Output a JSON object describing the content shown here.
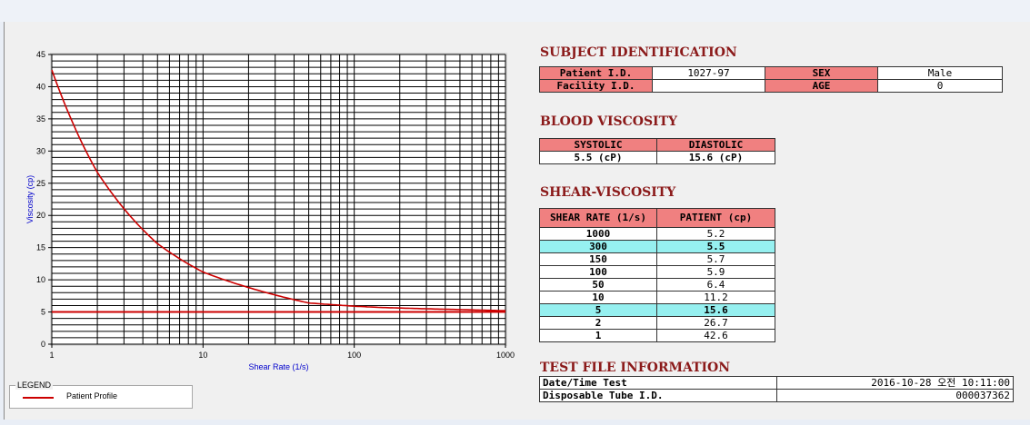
{
  "chart_data": {
    "type": "line",
    "title": "",
    "xlabel": "Shear Rate (1/s)",
    "ylabel": "Viscosity (cp)",
    "xscale": "log",
    "xlim": [
      1,
      1000
    ],
    "ylim": [
      0,
      45
    ],
    "x_ticks": [
      "1",
      "10",
      "100",
      "1000"
    ],
    "y_ticks": [
      "0",
      "5",
      "10",
      "15",
      "20",
      "25",
      "30",
      "35",
      "40",
      "45"
    ],
    "grid": true,
    "legend_position": "below",
    "series": [
      {
        "name": "Patient Profile",
        "color": "#cc0000",
        "x": [
          1,
          2,
          5,
          10,
          50,
          100,
          150,
          300,
          1000
        ],
        "y": [
          42.6,
          26.7,
          15.6,
          11.2,
          6.4,
          5.9,
          5.7,
          5.5,
          5.2
        ]
      }
    ],
    "reference_line_y": 5
  },
  "legend": {
    "title": "LEGEND",
    "label": "Patient Profile"
  },
  "subject": {
    "title": "SUBJECT IDENTIFICATION",
    "patient_id_label": "Patient I.D.",
    "patient_id": "1027-97",
    "sex_label": "SEX",
    "sex": "Male",
    "facility_label": "Facility I.D.",
    "facility": "",
    "age_label": "AGE",
    "age": "0"
  },
  "blood": {
    "title": "BLOOD VISCOSITY",
    "systolic_label": "SYSTOLIC",
    "diastolic_label": "DIASTOLIC",
    "systolic": "5.5 (cP)",
    "diastolic": "15.6 (cP)"
  },
  "shear": {
    "title": "SHEAR-VISCOSITY",
    "col1": "SHEAR RATE (1/s)",
    "col2": "PATIENT (cp)",
    "rows": [
      {
        "rate": "1000",
        "value": "5.2"
      },
      {
        "rate": "300",
        "value": "5.5"
      },
      {
        "rate": "150",
        "value": "5.7"
      },
      {
        "rate": "100",
        "value": "5.9"
      },
      {
        "rate": "50",
        "value": "6.4"
      },
      {
        "rate": "10",
        "value": "11.2"
      },
      {
        "rate": "5",
        "value": "15.6"
      },
      {
        "rate": "2",
        "value": "26.7"
      },
      {
        "rate": "1",
        "value": "42.6"
      }
    ]
  },
  "testfile": {
    "title": "TEST FILE INFORMATION",
    "date_label": "Date/Time Test",
    "date_value": "2016-10-28  오전 10:11:00",
    "tube_label": "Disposable Tube I.D.",
    "tube_value": "000037362"
  }
}
